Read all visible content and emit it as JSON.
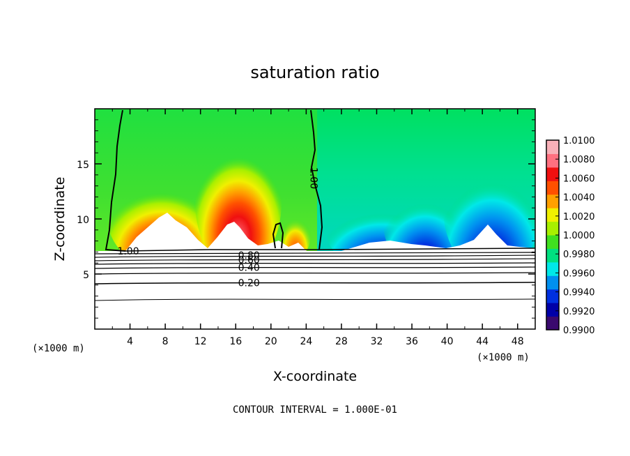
{
  "chart_data": {
    "type": "heatmap",
    "title": "saturation ratio",
    "xlabel": "X-coordinate",
    "ylabel": "Z-coordinate",
    "x_unit_label": "(×1000 m)",
    "xlim": [
      0,
      50
    ],
    "ylim": [
      0,
      20
    ],
    "x_ticks": [
      4,
      8,
      12,
      16,
      20,
      24,
      28,
      32,
      36,
      40,
      44,
      48
    ],
    "y_ticks": [
      5,
      10,
      15
    ],
    "colorbar": {
      "levels": [
        "0.9900",
        "0.9920",
        "0.9940",
        "0.9960",
        "0.9980",
        "1.0000",
        "1.0020",
        "1.0040",
        "1.0060",
        "1.0080",
        "1.0100"
      ],
      "colors": [
        "#3a0a6e",
        "#0000a8",
        "#0030e0",
        "#0090f0",
        "#00e8e8",
        "#00e080",
        "#40e020",
        "#a8f000",
        "#f0f000",
        "#ffa000",
        "#ff5000",
        "#f01010",
        "#ff7080",
        "#f8b0b8"
      ]
    },
    "contour_labels": [
      {
        "text": "1.00",
        "x": 3.8,
        "z": 7.1
      },
      {
        "text": "1.00",
        "x": 24.9,
        "z": 13.7
      },
      {
        "text": "0.80",
        "x": 17.5,
        "z": 6.7
      },
      {
        "text": "0.60",
        "x": 17.5,
        "z": 6.3
      },
      {
        "text": "0.40",
        "x": 17.5,
        "z": 5.6
      },
      {
        "text": "0.20",
        "x": 17.5,
        "z": 4.2
      }
    ],
    "contour_interval_label": "CONTOUR INTERVAL = 1.000E-01"
  }
}
